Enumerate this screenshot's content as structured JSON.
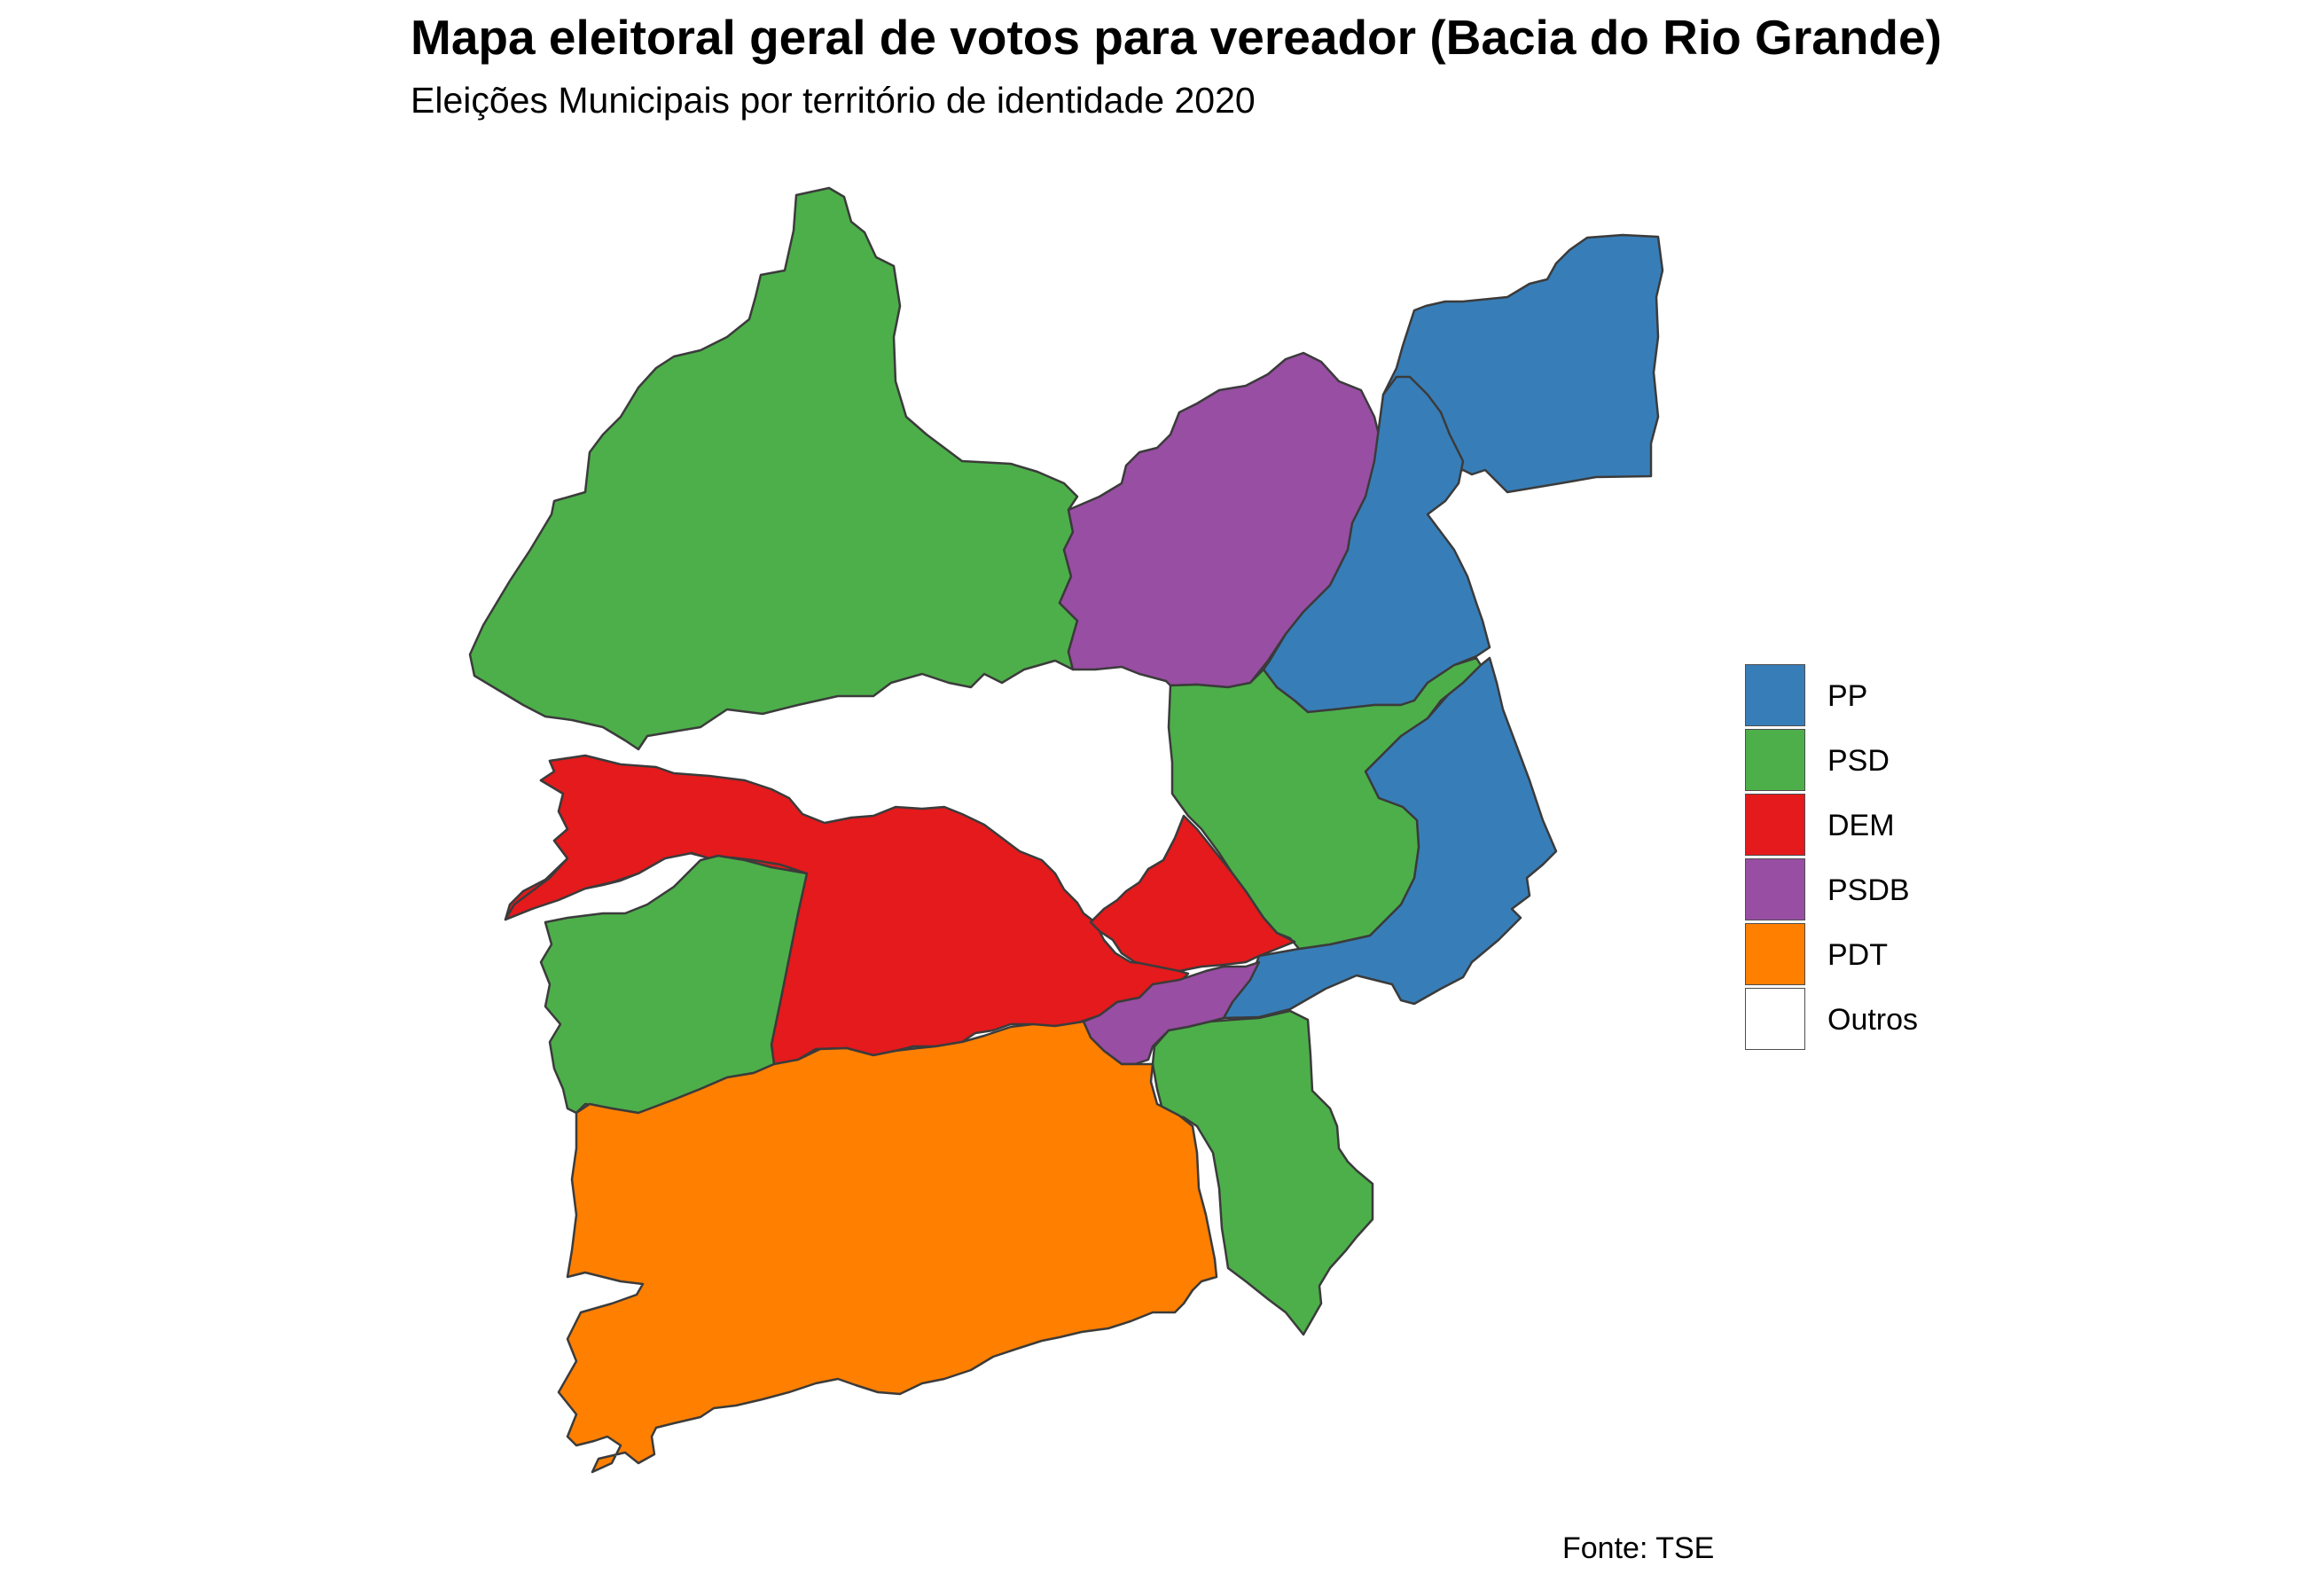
{
  "title": "Mapa eleitoral geral de votos para vereador (Bacia do Rio Grande)",
  "subtitle": "Eleições Municipais por território de identidade 2020",
  "caption": "Fonte: TSE",
  "legend": [
    {
      "party": "PP",
      "color": "#377EB8"
    },
    {
      "party": "PSD",
      "color": "#4DAF4A"
    },
    {
      "party": "DEM",
      "color": "#E41A1C"
    },
    {
      "party": "PSDB",
      "color": "#984EA3"
    },
    {
      "party": "PDT",
      "color": "#FF7F00"
    },
    {
      "party": "Outros",
      "color": "#FFFFFF"
    }
  ],
  "regions": [
    {
      "id": "northwest",
      "party": "PSD"
    },
    {
      "id": "north-central",
      "party": "PSDB"
    },
    {
      "id": "northeast-top",
      "party": "PP"
    },
    {
      "id": "east-upper",
      "party": "PP"
    },
    {
      "id": "east-lower",
      "party": "PP"
    },
    {
      "id": "center-east",
      "party": "PSD"
    },
    {
      "id": "center-unfilled",
      "party": "Outros"
    },
    {
      "id": "west-arm",
      "party": "DEM"
    },
    {
      "id": "center-south",
      "party": "DEM"
    },
    {
      "id": "center-east-lower",
      "party": "DEM"
    },
    {
      "id": "southwest",
      "party": "PSD"
    },
    {
      "id": "south-center-small",
      "party": "PSDB"
    },
    {
      "id": "southeast",
      "party": "PSD"
    },
    {
      "id": "south",
      "party": "PDT"
    }
  ]
}
